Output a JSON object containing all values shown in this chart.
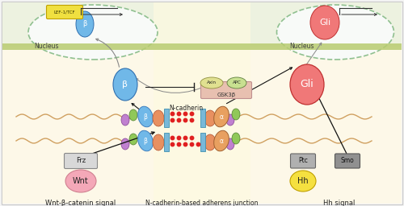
{
  "bg_outer": "#f5f5f5",
  "bg_cell": "#fdf8e8",
  "bg_extracellular": "#edf2e0",
  "bg_junction": "#fefae0",
  "membrane_color": "#b8cc70",
  "title_wnt": "Wnt-β-catenin signal",
  "title_hh": "Hh signal",
  "title_junction": "N-cadherin-based adherens junction",
  "label_ncadherin": "N-cadherin",
  "label_nucleus_left": "Nucleus",
  "label_nucleus_right": "Nucleus",
  "wnt_color": "#f4a8b8",
  "hh_color": "#f5e040",
  "frz_color": "#d8d8d8",
  "ptc_color": "#b0b0b0",
  "smo_color": "#909090",
  "beta_color": "#70b8e8",
  "alpha_color": "#e8a060",
  "gli_color": "#f07878",
  "lef_color": "#f0e040",
  "gsk_color": "#e8c0b0",
  "axin_color": "#e0e090",
  "apc_color": "#c8e090",
  "red_dot": "#e02020",
  "nucleus_border": "#90c090",
  "actin_color": "#d0a060",
  "purple_blob": "#c080d0",
  "green_blob": "#90c858",
  "orange_cad": "#e89060",
  "clip_color": "#78b8d8",
  "arrow_color": "#222222",
  "gray_arrow": "#888888"
}
